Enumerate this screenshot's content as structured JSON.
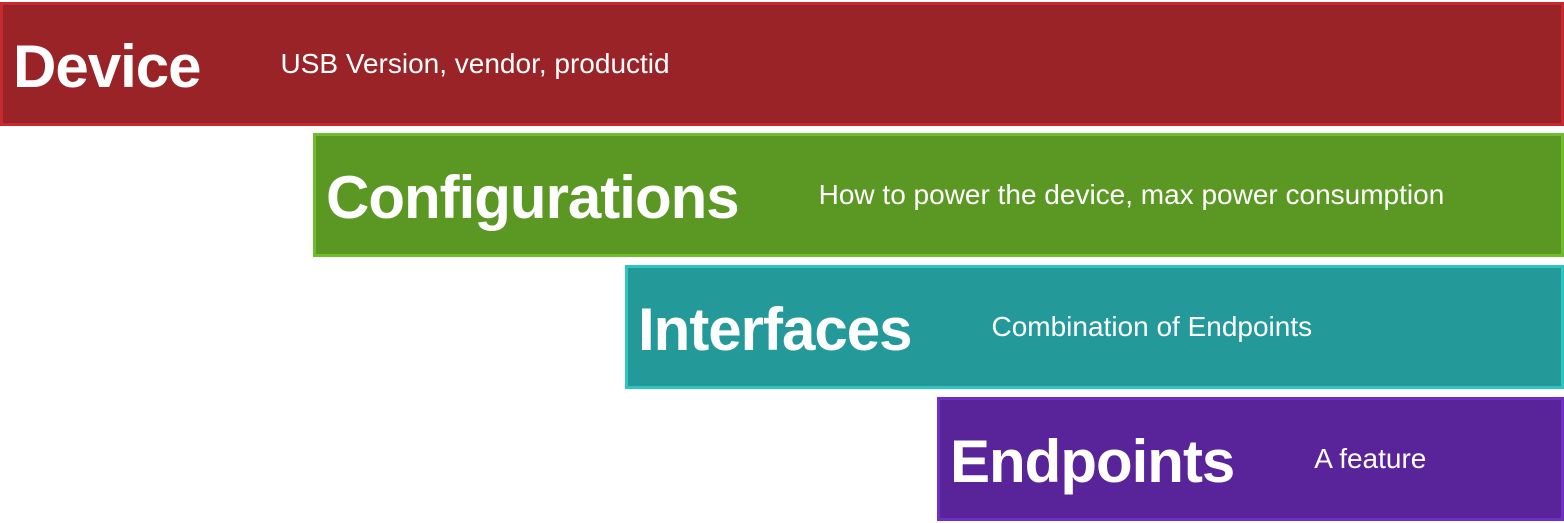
{
  "levels": [
    {
      "title": "Device",
      "description": "USB Version, vendor, productid",
      "color": "#9a2328",
      "border": "#c42a2e"
    },
    {
      "title": "Configurations",
      "description": "How to power the device, max power consumption",
      "color": "#5b9823",
      "border": "#6fbd2a"
    },
    {
      "title": "Interfaces",
      "description": "Combination of Endpoints",
      "color": "#239a99",
      "border": "#2ec4c2"
    },
    {
      "title": "Endpoints",
      "description": "A feature",
      "color": "#59239a",
      "border": "#6f2ec4"
    }
  ]
}
